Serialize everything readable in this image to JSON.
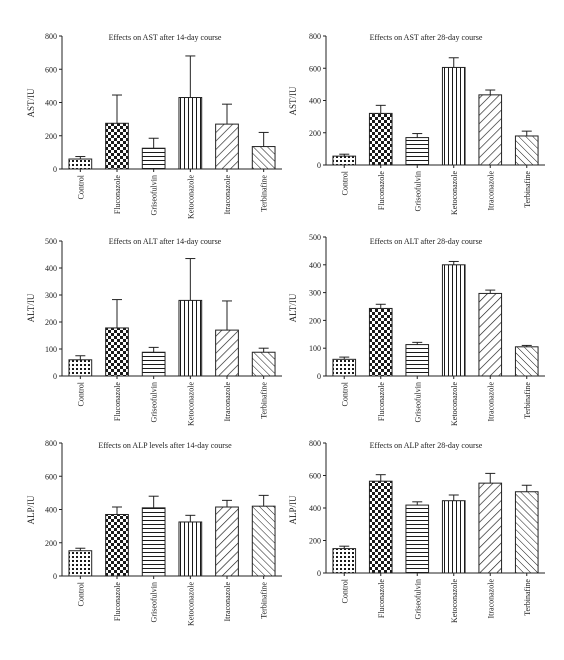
{
  "chart_data": [
    {
      "type": "bar",
      "title": "Effects on AST after 14-day course",
      "ylabel": "AST/IU",
      "xlabel": "",
      "ylim": [
        0,
        800
      ],
      "yticks": [
        0,
        200,
        400,
        600,
        800
      ],
      "categories": [
        "Control",
        "Fluconazole",
        "Griseofulvin",
        "Ketoconazole",
        "Itraconazole",
        "Terbinafine"
      ],
      "values": [
        60,
        275,
        125,
        430,
        270,
        135
      ],
      "errors": [
        15,
        170,
        60,
        250,
        120,
        85
      ]
    },
    {
      "type": "bar",
      "title": "Effects on AST after 28-day course",
      "ylabel": "AST/IU",
      "xlabel": "",
      "ylim": [
        0,
        800
      ],
      "yticks": [
        0,
        200,
        400,
        600,
        800
      ],
      "categories": [
        "Control",
        "Fluconazole",
        "Griseofulvin",
        "Ketoconazole",
        "Itraconazole",
        "Terbinafine"
      ],
      "values": [
        55,
        320,
        170,
        605,
        435,
        180
      ],
      "errors": [
        12,
        50,
        25,
        60,
        30,
        30
      ]
    },
    {
      "type": "bar",
      "title": "Effects on ALT after 14-day course",
      "ylabel": "ALT/IU",
      "xlabel": "",
      "ylim": [
        0,
        500
      ],
      "yticks": [
        0,
        100,
        200,
        300,
        400,
        500
      ],
      "categories": [
        "Control",
        "Fluconazole",
        "Griseofulvin",
        "Ketoconazole",
        "Itraconazole",
        "Terbinafine"
      ],
      "values": [
        60,
        178,
        88,
        280,
        170,
        88
      ],
      "errors": [
        15,
        105,
        18,
        155,
        108,
        15
      ]
    },
    {
      "type": "bar",
      "title": "Effects on ALT after 28-day course",
      "ylabel": "ALT/IU",
      "xlabel": "",
      "ylim": [
        0,
        500
      ],
      "yticks": [
        0,
        100,
        200,
        300,
        400,
        500
      ],
      "categories": [
        "Control",
        "Fluconazole",
        "Griseofulvin",
        "Ketoconazole",
        "Itraconazole",
        "Terbinafine"
      ],
      "values": [
        60,
        243,
        113,
        400,
        297,
        105
      ],
      "errors": [
        8,
        15,
        8,
        12,
        12,
        5
      ]
    },
    {
      "type": "bar",
      "title": "Effects on ALP levels after 14-day course",
      "ylabel": "ALP/IU",
      "xlabel": "",
      "ylim": [
        0,
        800
      ],
      "yticks": [
        0,
        200,
        400,
        600,
        800
      ],
      "categories": [
        "Control",
        "Fluconazole",
        "Griseofulvin",
        "Ketoconazole",
        "Itraconazole",
        "Terbinafine"
      ],
      "values": [
        152,
        370,
        410,
        325,
        415,
        420
      ],
      "errors": [
        15,
        45,
        70,
        40,
        40,
        65
      ]
    },
    {
      "type": "bar",
      "title": "Effects on ALP after 28-day course",
      "ylabel": "ALP/IU",
      "xlabel": "",
      "ylim": [
        0,
        800
      ],
      "yticks": [
        0,
        200,
        400,
        600,
        800
      ],
      "categories": [
        "Control",
        "Fluconazole",
        "Griseofulvin",
        "Ketoconazole",
        "Itraconazole",
        "Terbinafine"
      ],
      "values": [
        150,
        565,
        418,
        445,
        553,
        500
      ],
      "errors": [
        15,
        40,
        20,
        35,
        60,
        40
      ]
    }
  ]
}
